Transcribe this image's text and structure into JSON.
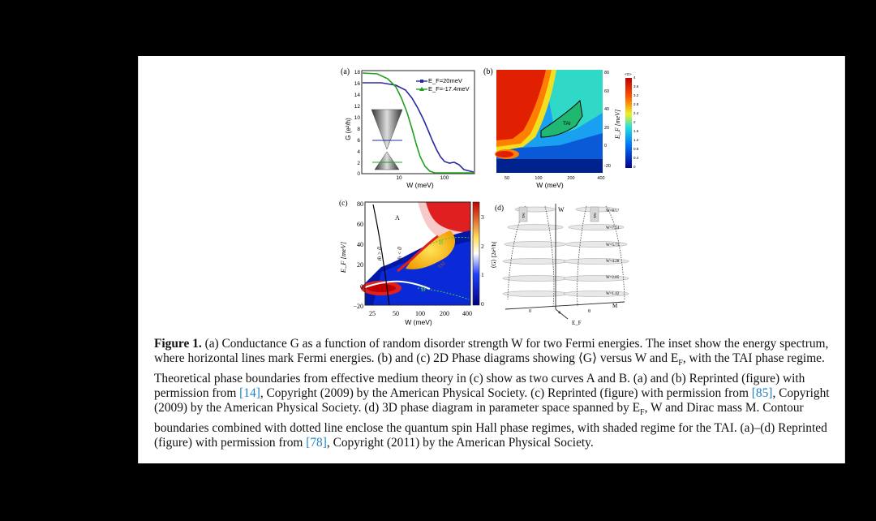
{
  "panels": {
    "a": {
      "label": "(a)",
      "ylabel": "G (e²/h)",
      "xlabel": "W (meV)",
      "yticks": [
        "18",
        "16",
        "14",
        "12",
        "10",
        "8",
        "6",
        "4",
        "2",
        "0"
      ],
      "xticks": [
        "10",
        "100"
      ],
      "legend": [
        "E_F=20meV",
        "E_F=-17.4meV"
      ],
      "colors": {
        "series1": "#2a2aa0",
        "series2": "#20a020"
      }
    },
    "b": {
      "label": "(b)",
      "xlabel": "W (meV)",
      "ylabel": "E_F [meV]",
      "xticks": [
        "50",
        "100",
        "200",
        "400"
      ],
      "yticks": [
        "80",
        "60",
        "40",
        "20",
        "0",
        "-20"
      ],
      "region_label": "TAI",
      "colorbar_title": "<G>",
      "colorbar_ticks": [
        "4",
        "3.6",
        "3.2",
        "2.8",
        "2.4",
        "2",
        "1.6",
        "1.2",
        "0.8",
        "0.4",
        "0"
      ]
    },
    "c": {
      "label": "(c)",
      "xlabel": "W (meV)",
      "ylabel": "E_F [meV]",
      "xticks": [
        "25",
        "50",
        "100",
        "200",
        "400"
      ],
      "yticks": [
        "80",
        "60",
        "40",
        "20",
        "0",
        "−20"
      ],
      "curve_labels": [
        "A",
        "B",
        "B"
      ],
      "region_label": "TAI",
      "mass_labels": [
        "m̄ > 0",
        "m̄ < 0"
      ],
      "colorbar_title": "⟨G⟩ [2e²/h]",
      "colorbar_ticks": [
        "3",
        "2",
        "1",
        "0"
      ]
    },
    "d": {
      "label": "(d)",
      "axis_labels": {
        "w": "W",
        "m": "M",
        "ef": "E_F"
      },
      "w_levels": [
        "W=8.57",
        "W=7.14",
        "W=5.71",
        "W=4.28",
        "W=2.85",
        "W=1.42"
      ],
      "tai_labels": [
        "TAI",
        "TAI"
      ],
      "m_ticks": [
        "0",
        "4",
        "8"
      ]
    }
  },
  "caption": {
    "label": "Figure 1.",
    "p1": "(a) Conductance G as a function of random disorder strength W for two Fermi energies. The inset show the energy spectrum, where horizontal lines mark Fermi energies. (b) and (c) 2D Phase diagrams showing ⟨G⟩ versus W and E",
    "p2": ", with the TAI phase regime. Theoretical phase boundaries from effective medium theory in (c) show as two curves A and B. (a) and (b) Reprinted (figure) with permission from ",
    "c1": "[14]",
    "p3": ", Copyright (2009) by the American Physical Society. (c) Reprinted (figure) with permission from ",
    "c2": "[85]",
    "p4": ", Copyright (2009) by the American Physical Society. (d) 3D phase diagram in parameter space spanned by E",
    "p5": ", W and Dirac mass M. Contour boundaries combined with dotted line enclose the quantum spin Hall phase regimes, with shaded regime for the TAI. (a)–(d) Reprinted (figure) with permission from ",
    "c3": "[78]",
    "p6": ", Copyright (2011) by the American Physical Society."
  }
}
